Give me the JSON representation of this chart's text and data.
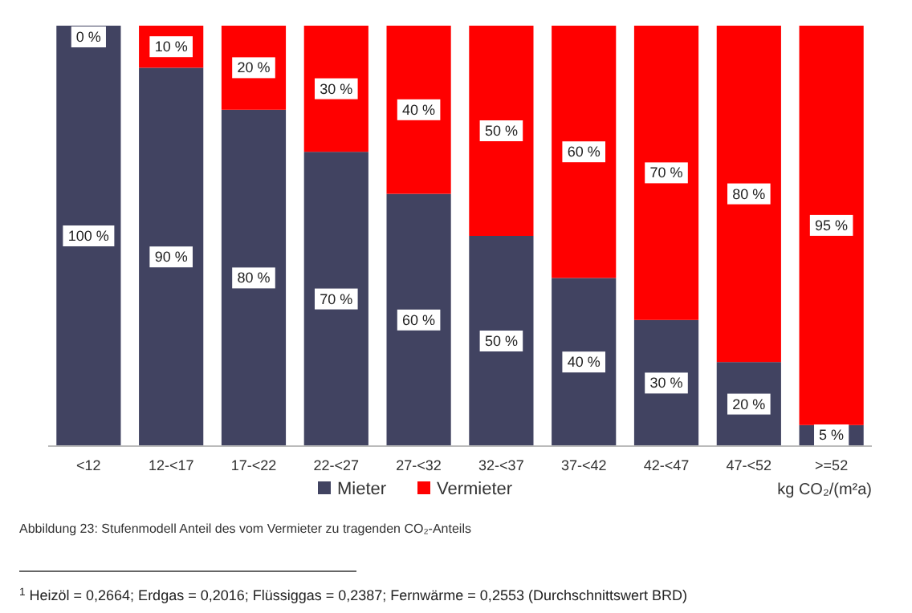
{
  "chart_data": {
    "type": "bar",
    "stacked": true,
    "xlabel": "kg CO₂/(m²a)",
    "categories": [
      "<12",
      "12-<17",
      "17-<22",
      "22-<27",
      "27-<32",
      "32-<37",
      "37-<42",
      "42-<47",
      "47-<52",
      ">=52"
    ],
    "series": [
      {
        "name": "Mieter",
        "color": "#414361",
        "values": [
          100,
          90,
          80,
          70,
          60,
          50,
          40,
          30,
          20,
          5
        ],
        "value_labels": [
          "100 %",
          "90 %",
          "80 %",
          "70 %",
          "60 %",
          "50 %",
          "40 %",
          "30 %",
          "20 %",
          "5 %"
        ]
      },
      {
        "name": "Vermieter",
        "color": "#ff0000",
        "values": [
          0,
          10,
          20,
          30,
          40,
          50,
          60,
          70,
          80,
          95
        ],
        "value_labels": [
          "0 %",
          "10 %",
          "20 %",
          "30 %",
          "40 %",
          "50 %",
          "60 %",
          "70 %",
          "80 %",
          "95 %"
        ]
      }
    ],
    "legend": "bottom",
    "annotations": [
      "Abbildung 23: Stufenmodell Anteil des vom Vermieter zu tragenden CO₂-Anteils",
      "$^{1}$ Heizöl = 0,2664; Erdgas = 0,2016; Flüssiggas = 0,2387; Fernwärme = 0,2553 (Durchschnittswert BRD)"
    ]
  }
}
